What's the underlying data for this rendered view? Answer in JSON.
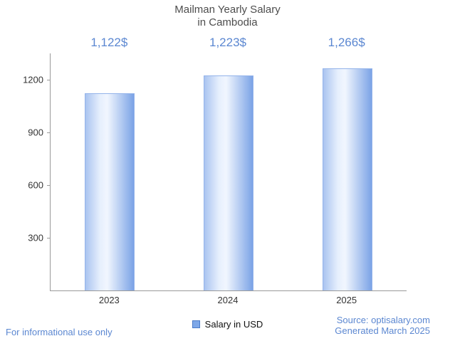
{
  "chart_data": {
    "type": "bar",
    "title": "Mailman Yearly Salary in Cambodia",
    "title_lines": [
      "Mailman Yearly Salary",
      "in Cambodia"
    ],
    "categories": [
      "2023",
      "2024",
      "2025"
    ],
    "values": [
      1122,
      1223,
      1266
    ],
    "value_labels": [
      "1,122$",
      "1,223$",
      "1,266$"
    ],
    "series_name": "Salary in USD",
    "legend": [
      "Salary in USD"
    ],
    "xlabel": "",
    "ylabel": "",
    "ylim": [
      0,
      1350
    ],
    "yticks": [
      300,
      600,
      900,
      1200
    ],
    "grid": false,
    "legend_position": "bottom",
    "colors": {
      "accent_text": "#5b87d1",
      "bar_border": "#93b3ea",
      "bar_gradient": [
        "#aac4f0",
        "#f1f6fe",
        "#7ba3e6"
      ],
      "legend_swatch": "#7da7e8",
      "axis": "#9a9a9a",
      "title": "#4d4d4d"
    }
  },
  "footer": {
    "disclaimer": "For informational use only",
    "source": "Source: optisalary.com",
    "generated": "Generated March 2025"
  }
}
